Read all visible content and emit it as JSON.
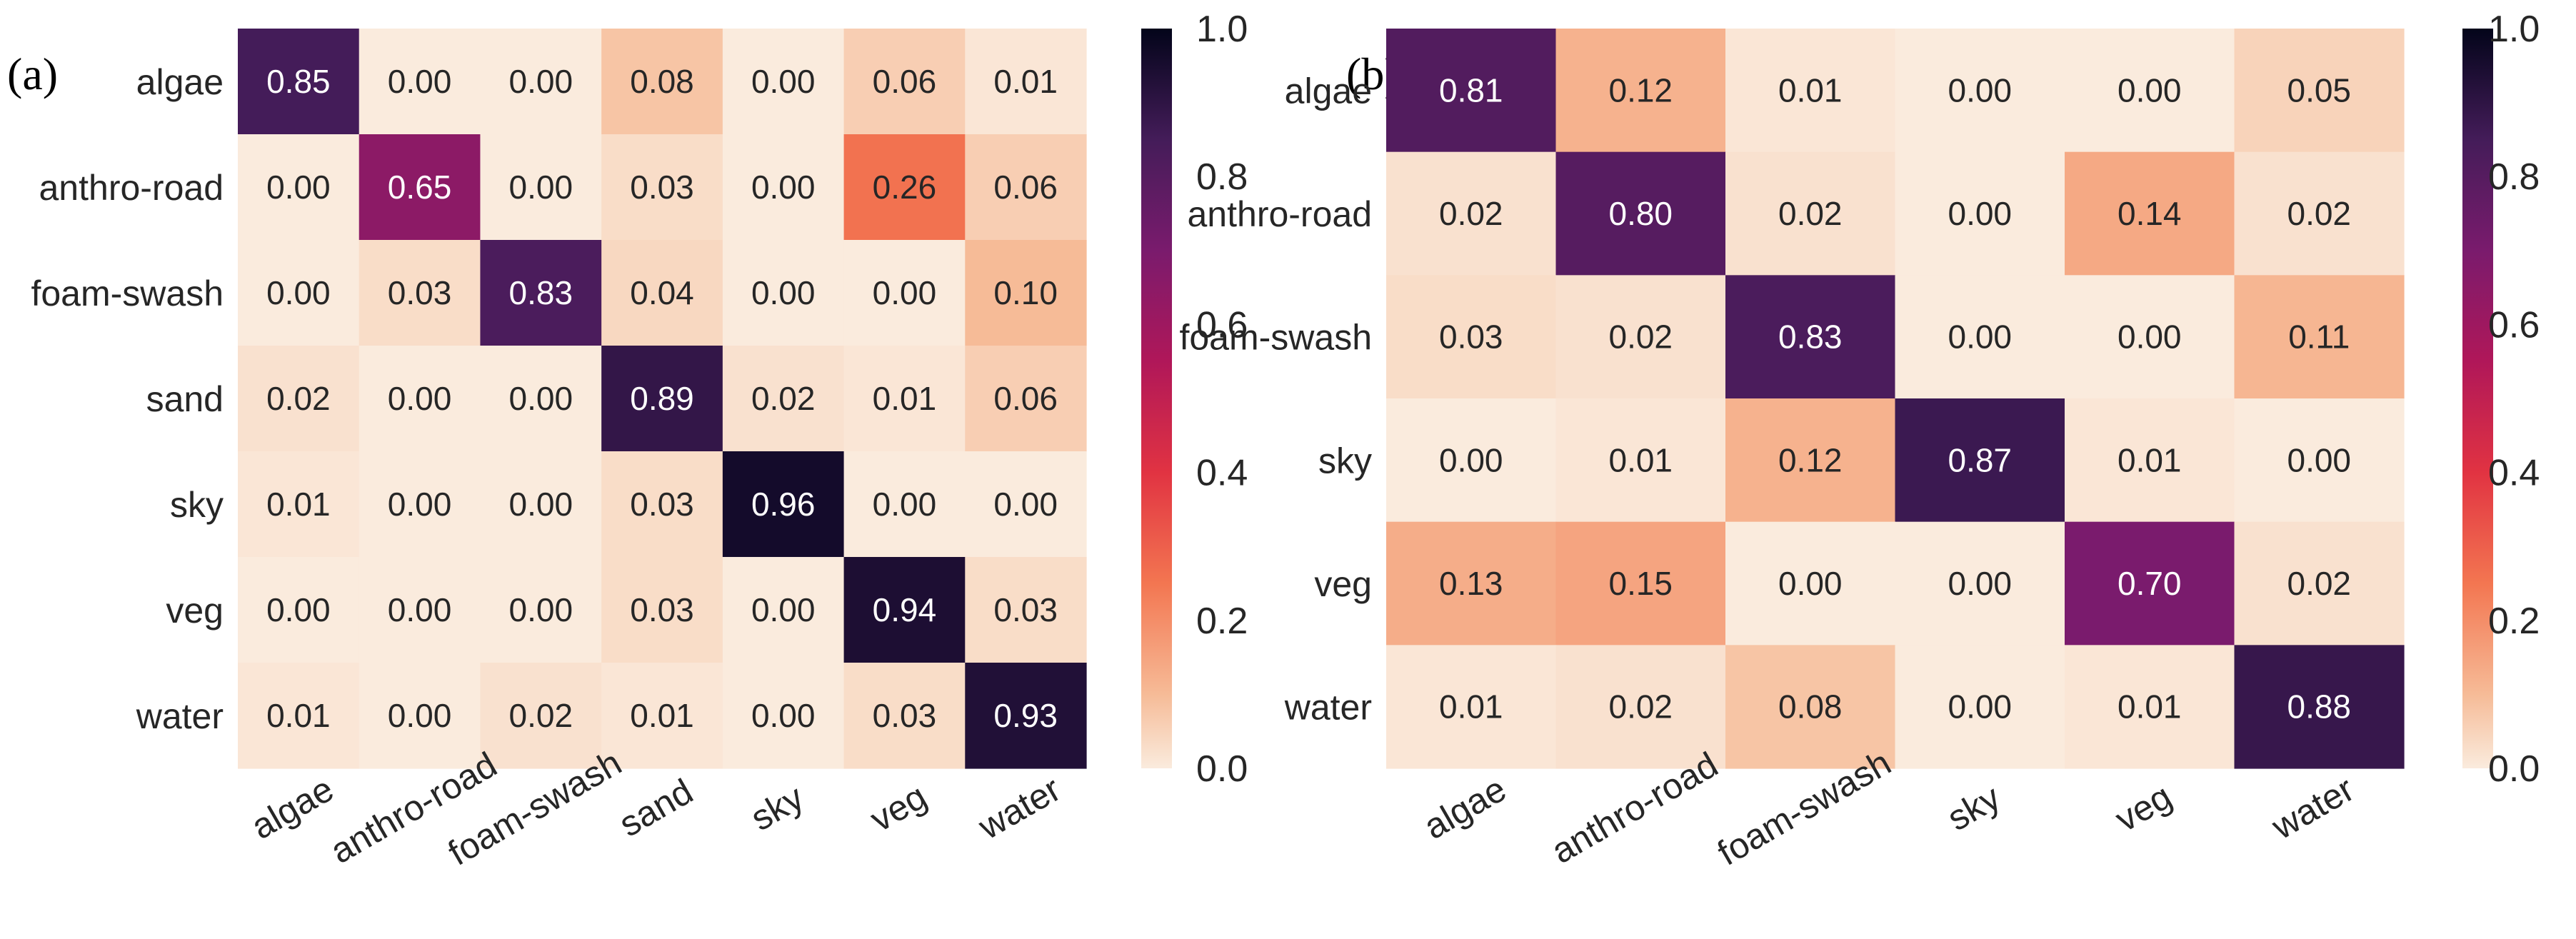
{
  "chart_data": [
    {
      "type": "heatmap",
      "panel_label": "(a)",
      "rows": [
        "algae",
        "anthro-road",
        "foam-swash",
        "sand",
        "sky",
        "veg",
        "water"
      ],
      "cols": [
        "algae",
        "anthro-road",
        "foam-swash",
        "sand",
        "sky",
        "veg",
        "water"
      ],
      "values": [
        [
          0.85,
          0.0,
          0.0,
          0.08,
          0.0,
          0.06,
          0.01
        ],
        [
          0.0,
          0.65,
          0.0,
          0.03,
          0.0,
          0.26,
          0.06
        ],
        [
          0.0,
          0.03,
          0.83,
          0.04,
          0.0,
          0.0,
          0.1
        ],
        [
          0.02,
          0.0,
          0.0,
          0.89,
          0.02,
          0.01,
          0.06
        ],
        [
          0.01,
          0.0,
          0.0,
          0.03,
          0.96,
          0.0,
          0.0
        ],
        [
          0.0,
          0.0,
          0.0,
          0.03,
          0.0,
          0.94,
          0.03
        ],
        [
          0.01,
          0.0,
          0.02,
          0.01,
          0.0,
          0.03,
          0.93
        ]
      ],
      "colorbar_ticks": [
        "0.0",
        "0.2",
        "0.4",
        "0.6",
        "0.8",
        "1.0"
      ],
      "vmin": 0.0,
      "vmax": 1.0
    },
    {
      "type": "heatmap",
      "panel_label": "(b)",
      "rows": [
        "algae",
        "anthro-road",
        "foam-swash",
        "sky",
        "veg",
        "water"
      ],
      "cols": [
        "algae",
        "anthro-road",
        "foam-swash",
        "sky",
        "veg",
        "water"
      ],
      "values": [
        [
          0.81,
          0.12,
          0.01,
          0.0,
          0.0,
          0.05
        ],
        [
          0.02,
          0.8,
          0.02,
          0.0,
          0.14,
          0.02
        ],
        [
          0.03,
          0.02,
          0.83,
          0.0,
          0.0,
          0.11
        ],
        [
          0.0,
          0.01,
          0.12,
          0.87,
          0.01,
          0.0
        ],
        [
          0.13,
          0.15,
          0.0,
          0.0,
          0.7,
          0.02
        ],
        [
          0.01,
          0.02,
          0.08,
          0.0,
          0.01,
          0.88
        ]
      ],
      "colorbar_ticks": [
        "0.0",
        "0.2",
        "0.4",
        "0.6",
        "0.8",
        "1.0"
      ],
      "vmin": 0.0,
      "vmax": 1.0
    }
  ]
}
